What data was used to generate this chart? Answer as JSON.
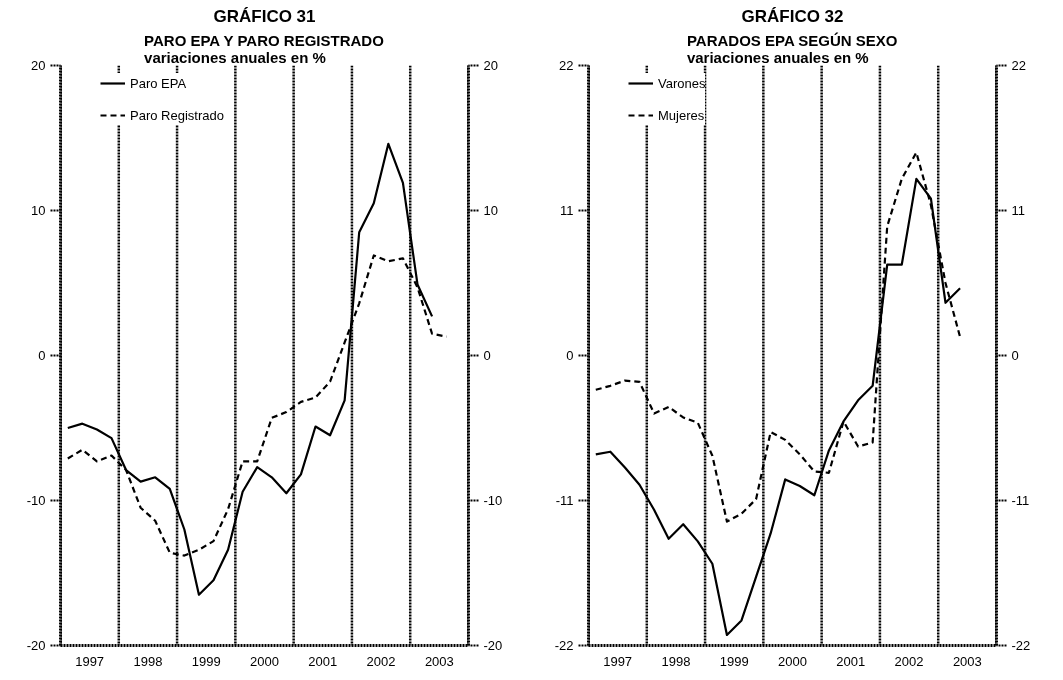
{
  "chart_data": [
    {
      "type": "line",
      "title": "GRÁFICO 31",
      "subtitle": "PARO EPA Y PARO REGISTRADO\nvariaciones anuales en %",
      "x": [
        1997.125,
        1997.375,
        1997.625,
        1997.875,
        1998.125,
        1998.375,
        1998.625,
        1998.875,
        1999.125,
        1999.375,
        1999.625,
        1999.875,
        2000.125,
        2000.375,
        2000.625,
        2000.875,
        2001.125,
        2001.375,
        2001.625,
        2001.875,
        2002.125,
        2002.375,
        2002.625,
        2002.875,
        2003.125,
        2003.375,
        2003.625
      ],
      "series": [
        {
          "name": "Paro EPA",
          "color": "#000000",
          "line_style": "solid",
          "values": [
            -5.0,
            -4.7,
            -5.1,
            -5.7,
            -7.9,
            -8.7,
            -8.4,
            -9.2,
            -12.0,
            -16.5,
            -15.5,
            -13.4,
            -9.4,
            -7.7,
            -8.4,
            -9.5,
            -8.2,
            -4.9,
            -5.5,
            -3.1,
            8.5,
            10.5,
            14.6,
            11.9,
            4.9,
            2.7,
            null
          ]
        },
        {
          "name": "Paro Registrado",
          "color": "#000000",
          "line_style": "dashed",
          "values": [
            -7.1,
            -6.5,
            -7.3,
            -6.9,
            -7.9,
            -10.5,
            -11.4,
            -13.6,
            -13.8,
            -13.4,
            -12.8,
            -10.6,
            -7.3,
            -7.3,
            -4.3,
            -3.9,
            -3.2,
            -2.9,
            -1.8,
            0.9,
            3.6,
            6.9,
            6.5,
            6.7,
            4.7,
            1.5,
            1.3
          ]
        }
      ],
      "xlim": [
        1997,
        2004
      ],
      "xticks": [
        {
          "value": 1997,
          "label": null
        },
        {
          "value": 1997.5,
          "label": "1997"
        },
        {
          "value": 1998,
          "label": null
        },
        {
          "value": 1998.5,
          "label": "1998"
        },
        {
          "value": 1999,
          "label": null
        },
        {
          "value": 1999.5,
          "label": "1999"
        },
        {
          "value": 2000,
          "label": null
        },
        {
          "value": 2000.5,
          "label": "2000"
        },
        {
          "value": 2001,
          "label": null
        },
        {
          "value": 2001.5,
          "label": "2001"
        },
        {
          "value": 2002,
          "label": null
        },
        {
          "value": 2002.5,
          "label": "2002"
        },
        {
          "value": 2003,
          "label": null
        },
        {
          "value": 2003.5,
          "label": "2003"
        },
        {
          "value": 2004,
          "label": null
        }
      ],
      "ylim": [
        -20,
        20
      ],
      "yticks": [
        -20,
        -10,
        0,
        10,
        20
      ],
      "y2lim": [
        -20,
        20
      ],
      "y2ticks": [
        -20,
        -10,
        0,
        10,
        20
      ],
      "grid": "x",
      "legend": "top left"
    },
    {
      "type": "line",
      "title": "GRÁFICO 32",
      "subtitle": "PARADOS EPA SEGÚN SEXO\nvariaciones anuales en %",
      "x": [
        1997.125,
        1997.375,
        1997.625,
        1997.875,
        1998.125,
        1998.375,
        1998.625,
        1998.875,
        1999.125,
        1999.375,
        1999.625,
        1999.875,
        2000.125,
        2000.375,
        2000.625,
        2000.875,
        2001.125,
        2001.375,
        2001.625,
        2001.875,
        2002.125,
        2002.375,
        2002.625,
        2002.875,
        2003.125,
        2003.375
      ],
      "series": [
        {
          "name": "Varones",
          "color": "#000000",
          "line_style": "solid",
          "values": [
            -7.5,
            -7.3,
            -8.5,
            -9.8,
            -11.7,
            -13.9,
            -12.8,
            -14.1,
            -15.8,
            -21.2,
            -20.1,
            -16.8,
            -13.5,
            -9.4,
            -9.9,
            -10.6,
            -7.2,
            -5.0,
            -3.4,
            -2.3,
            6.9,
            6.9,
            13.4,
            11.9,
            4.0,
            5.1
          ]
        },
        {
          "name": "Mujeres",
          "color": "#000000",
          "line_style": "dashed",
          "values": [
            -2.6,
            -2.3,
            -1.9,
            -2.0,
            -4.4,
            -3.9,
            -4.7,
            -5.1,
            -7.6,
            -12.6,
            -12.0,
            -10.9,
            -5.8,
            -6.4,
            -7.5,
            -8.8,
            -8.9,
            -5.0,
            -6.9,
            -6.6,
            9.8,
            13.4,
            15.4,
            11.4,
            5.5,
            1.4
          ]
        }
      ],
      "xlim": [
        1997,
        2004
      ],
      "xticks": [
        {
          "value": 1997,
          "label": null
        },
        {
          "value": 1997.5,
          "label": "1997"
        },
        {
          "value": 1998,
          "label": null
        },
        {
          "value": 1998.5,
          "label": "1998"
        },
        {
          "value": 1999,
          "label": null
        },
        {
          "value": 1999.5,
          "label": "1999"
        },
        {
          "value": 2000,
          "label": null
        },
        {
          "value": 2000.5,
          "label": "2000"
        },
        {
          "value": 2001,
          "label": null
        },
        {
          "value": 2001.5,
          "label": "2001"
        },
        {
          "value": 2002,
          "label": null
        },
        {
          "value": 2002.5,
          "label": "2002"
        },
        {
          "value": 2003,
          "label": null
        },
        {
          "value": 2003.5,
          "label": "2003"
        },
        {
          "value": 2004,
          "label": null
        }
      ],
      "ylim": [
        -22,
        22
      ],
      "yticks": [
        -22,
        -11,
        0,
        11,
        22
      ],
      "y2lim": [
        -22,
        22
      ],
      "y2ticks": [
        -22,
        -11,
        0,
        11,
        22
      ],
      "grid": "x",
      "legend": "top left"
    }
  ]
}
